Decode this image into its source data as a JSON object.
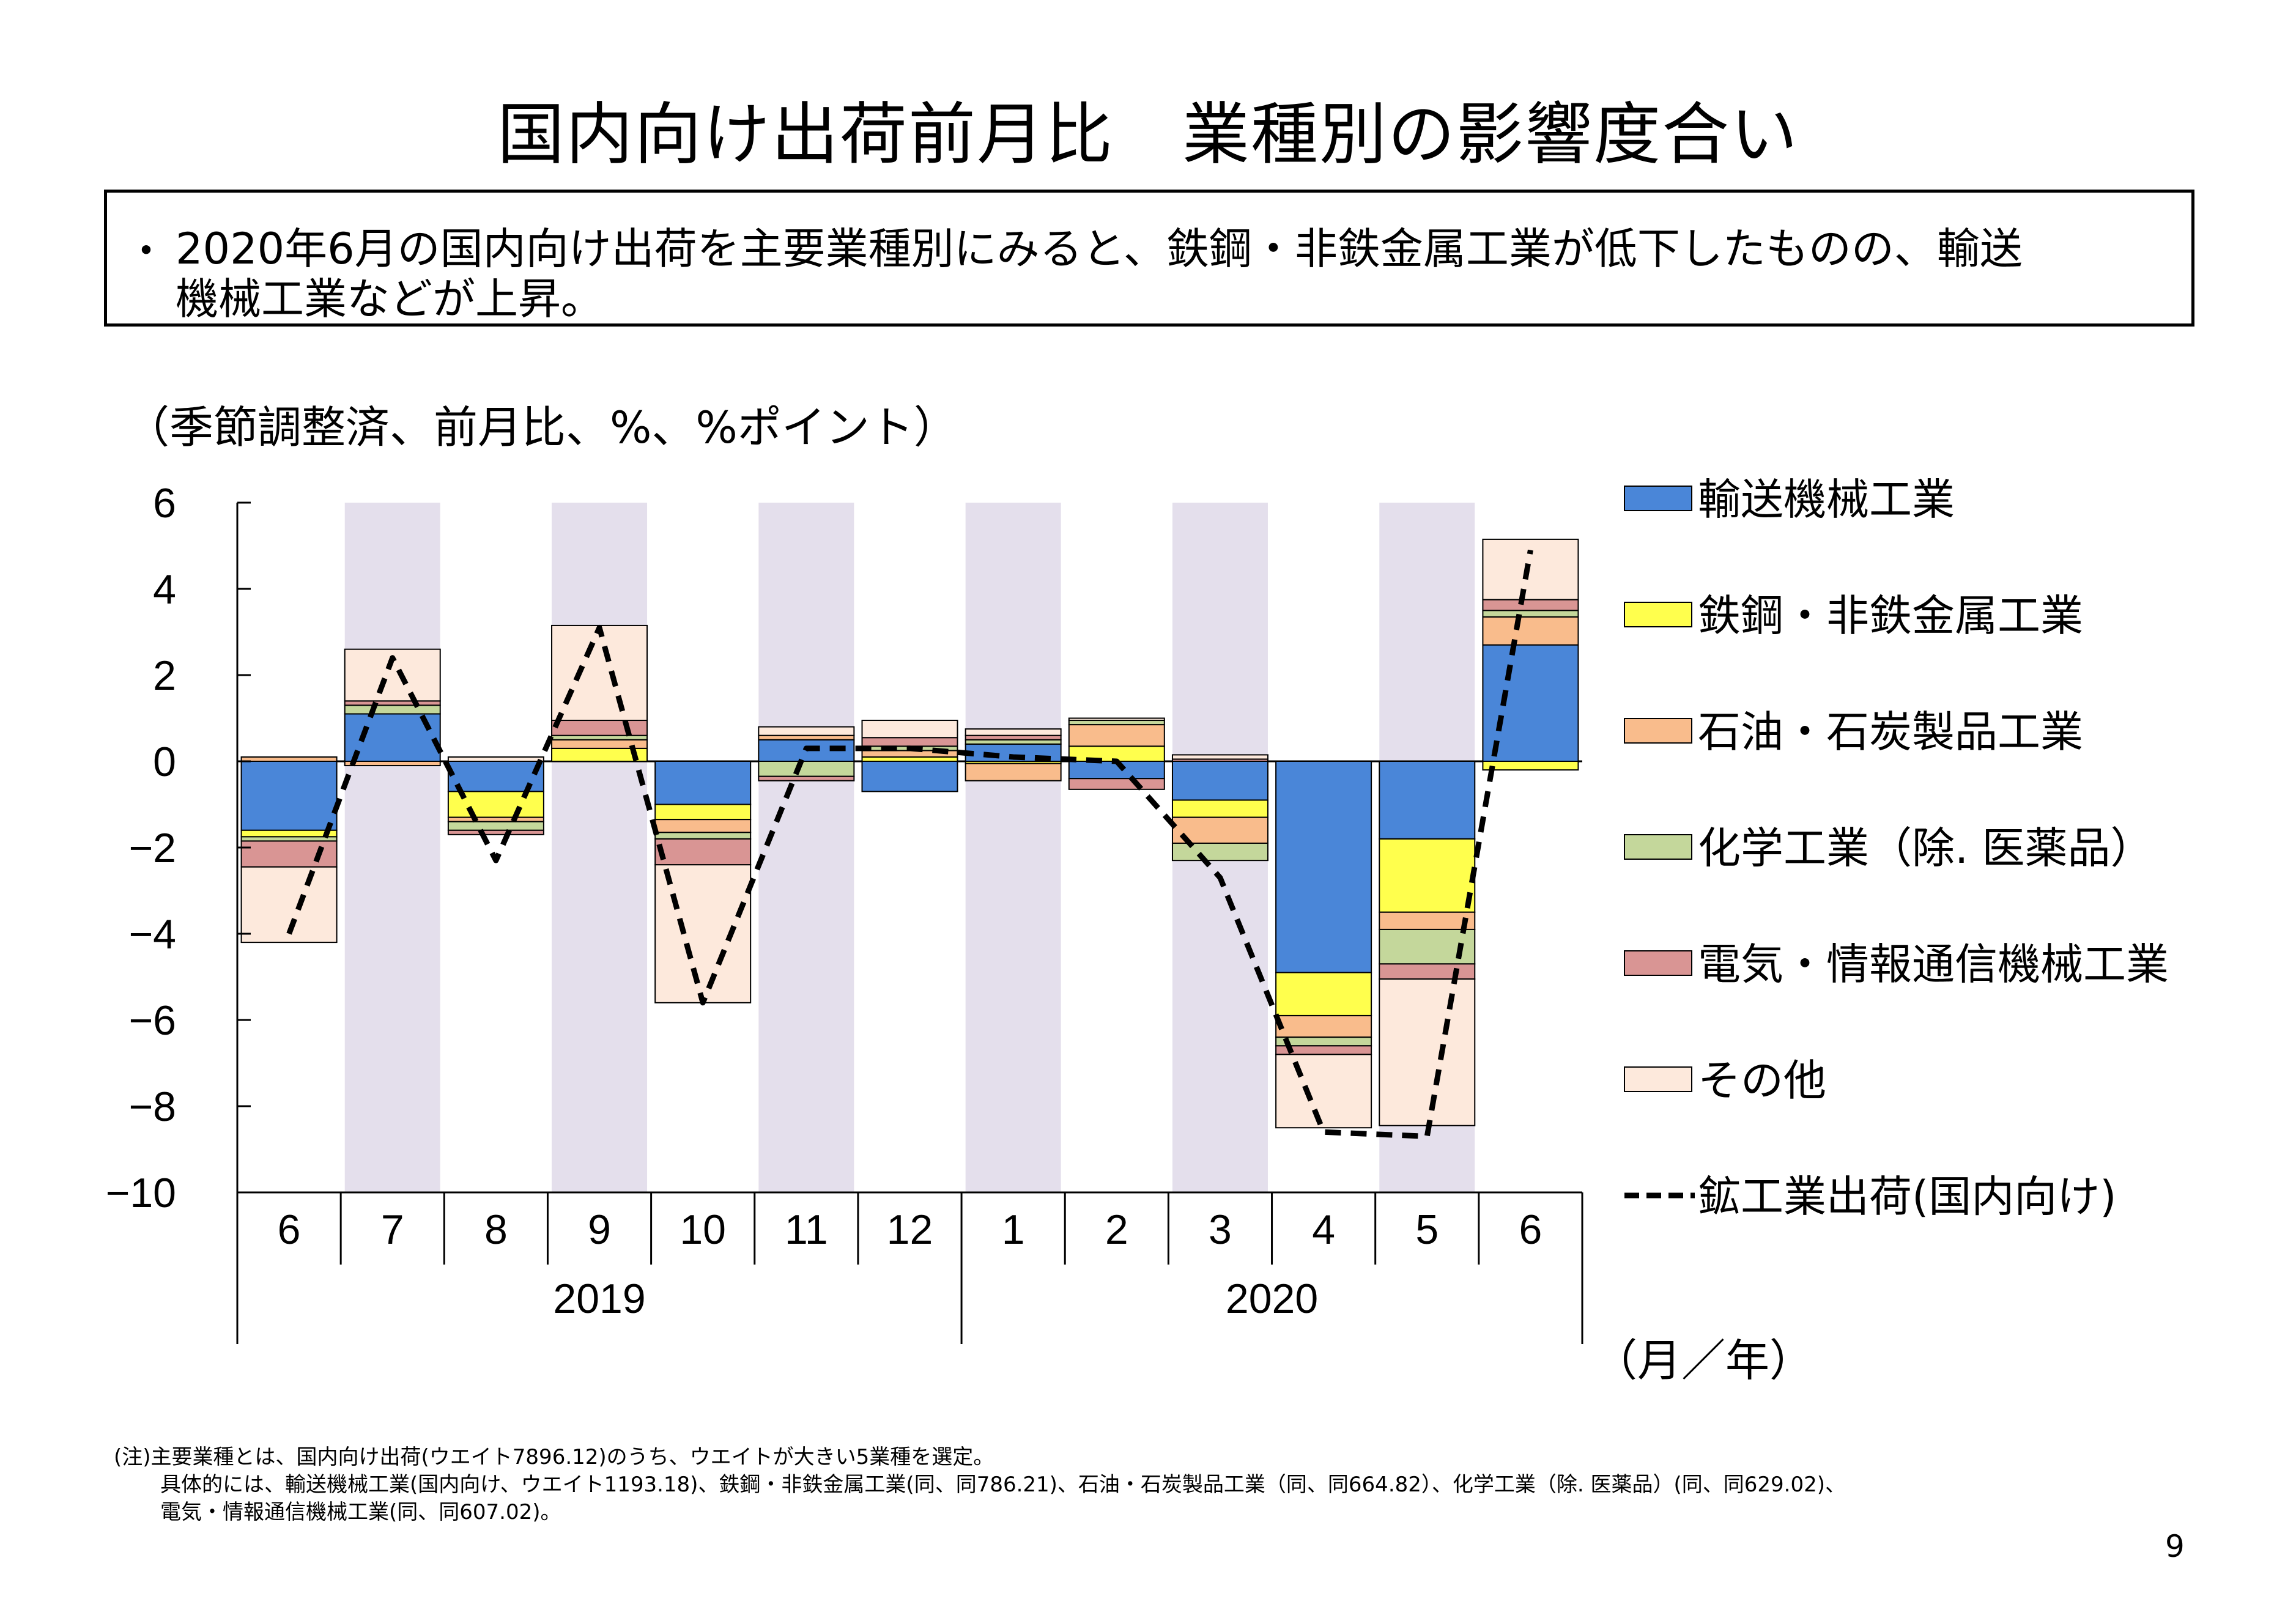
{
  "title": "国内向け出荷前月比　業種別の影響度合い",
  "summary": {
    "bullet": "・",
    "line1": "2020年6月の国内向け出荷を主要業種別にみると、鉄鋼・非鉄金属工業が低下したものの、輸送",
    "line2": "機械工業などが上昇。"
  },
  "unit_label": "（季節調整済、前月比、%、%ポイント）",
  "axis_unit_label": "（月／年）",
  "notes": [
    "(注)主要業種とは、国内向け出荷(ウエイト7896.12)のうち、ウエイトが大きい5業種を選定。",
    "具体的には、輸送機械工業(国内向け、ウエイト1193.18)、鉄鋼・非鉄金属工業(同、同786.21)、石油・石炭製品工業（同、同664.82）、化学工業（除. 医薬品）(同、同629.02)、",
    "電気・情報通信機械工業(同、同607.02)。"
  ],
  "page_number": "9",
  "colors": {
    "transport": "#4a86d8",
    "steel": "#ffff4d",
    "petro": "#f9bc8c",
    "chem": "#c4d79b",
    "elec": "#d99594",
    "other": "#fde9dc",
    "line": "#000000",
    "shade": "#e4dfec"
  },
  "chart_data": {
    "type": "bar",
    "stacked": true,
    "categories": [
      "6",
      "7",
      "8",
      "9",
      "10",
      "11",
      "12",
      "1",
      "2",
      "3",
      "4",
      "5",
      "6"
    ],
    "years": [
      {
        "label": "2019",
        "start": 0,
        "end": 6
      },
      {
        "label": "2020",
        "start": 7,
        "end": 12
      }
    ],
    "shaded": [
      1,
      3,
      5,
      7,
      9,
      11
    ],
    "ylim": [
      -10,
      6
    ],
    "yticks": [
      6,
      4,
      2,
      0,
      -2,
      -4,
      -6,
      -8,
      -10
    ],
    "ytick_labels": [
      "6",
      "4",
      "2",
      "0",
      "−2",
      "−4",
      "−6",
      "−8",
      "−10"
    ],
    "series": [
      {
        "name": "輸送機械工業",
        "key": "transport",
        "values": [
          -1.6,
          1.1,
          -0.7,
          0,
          -1.0,
          0.5,
          -0.7,
          0.4,
          -0.4,
          -0.9,
          -4.9,
          -1.8,
          2.7
        ]
      },
      {
        "name": "鉄鋼・非鉄金属工業",
        "key": "steel",
        "values": [
          -0.15,
          0,
          -0.6,
          0.3,
          -0.35,
          0,
          0.1,
          -0.05,
          0.35,
          -0.4,
          -1.0,
          -1.7,
          -0.2
        ]
      },
      {
        "name": "石油・石炭製品工業",
        "key": "petro",
        "values": [
          0.1,
          -0.1,
          -0.1,
          0.2,
          -0.3,
          0.1,
          0.15,
          -0.4,
          0.5,
          -0.6,
          -0.5,
          -0.4,
          0.65
        ]
      },
      {
        "name": "化学工業（除. 医薬品）",
        "key": "chem",
        "values": [
          -0.1,
          0.2,
          -0.2,
          0.1,
          -0.15,
          -0.35,
          0.1,
          0.1,
          0.1,
          -0.4,
          -0.2,
          -0.8,
          0.15
        ]
      },
      {
        "name": "電気・情報通信機械工業",
        "key": "elec",
        "values": [
          -0.6,
          0.1,
          -0.1,
          0.35,
          -0.6,
          -0.1,
          0.2,
          0.1,
          -0.25,
          0.05,
          -0.2,
          -0.35,
          0.25
        ]
      },
      {
        "name": "その他",
        "key": "other",
        "values": [
          -1.75,
          1.2,
          0.1,
          2.2,
          -3.2,
          0.2,
          0.4,
          0.15,
          0.05,
          0.1,
          -1.7,
          -3.4,
          1.4
        ]
      }
    ],
    "line": {
      "name": "鉱工業出荷(国内向け)",
      "values": [
        -4.0,
        2.4,
        -2.3,
        3.1,
        -5.6,
        0.3,
        0.3,
        0.1,
        0.0,
        -2.7,
        -8.6,
        -8.7,
        4.9
      ]
    }
  }
}
